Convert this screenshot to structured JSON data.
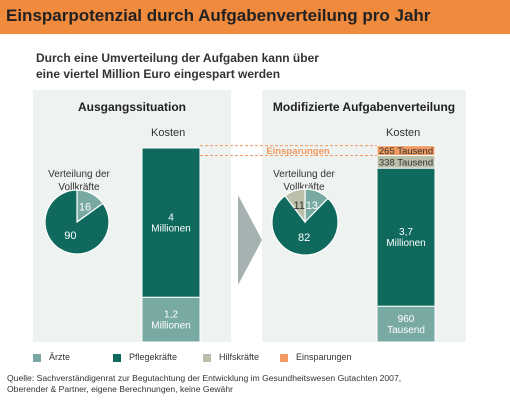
{
  "header": {
    "title": "Einsparpotenzial durch Aufgabenverteilung pro Jahr"
  },
  "subtitle": {
    "line1": "Durch eine Umverteilung der Aufgaben kann über",
    "line2": "eine viertel Million Euro eingespart werden"
  },
  "colors": {
    "header": "#f08a3c",
    "aerzte": "#79a9a3",
    "pflegekraefte": "#0f6a5d",
    "hilfskraefte": "#b9bfa9",
    "einsparungen": "#f19a62",
    "panel": "#eef2f1",
    "arrow": "#a6b2b2"
  },
  "panels": {
    "left": {
      "title": "Ausgangssituation",
      "kosten_label": "Kosten",
      "verteilung_line1": "Verteilung der",
      "verteilung_line2": "Vollkräfte"
    },
    "right": {
      "title": "Modifizierte Aufgabenverteilung",
      "kosten_label": "Kosten",
      "verteilung_line1": "Verteilung der",
      "verteilung_line2": "Vollkräfte"
    }
  },
  "legend": [
    "Ärzte",
    "Pflegekräfte",
    "Hilfskräfte",
    "Einsparungen"
  ],
  "source": {
    "line1": "Quelle: Sachverständigenrat zur Begutachtung der Entwicklung im Gesundheitswesen Gutachten 2007,",
    "line2": "Oberender & Partner, eigene Berechnungen, keine Gewähr"
  },
  "chart_data": [
    {
      "type": "pie",
      "panel": "Ausgangssituation",
      "slices": [
        {
          "category": "Ärzte",
          "value": 16,
          "label": "16"
        },
        {
          "category": "Pflegekräfte",
          "value": 90,
          "label": "90"
        }
      ]
    },
    {
      "type": "bar",
      "panel": "Ausgangssituation",
      "stacked": true,
      "segments": [
        {
          "category": "Ärzte",
          "value": 1.2,
          "label_lines": [
            "1,2",
            "Millionen"
          ]
        },
        {
          "category": "Pflegekräfte",
          "value": 4.0,
          "label_lines": [
            "4",
            "Millionen"
          ]
        }
      ]
    },
    {
      "type": "pie",
      "panel": "Modifizierte Aufgabenverteilung",
      "slices": [
        {
          "category": "Ärzte",
          "value": 13,
          "label": "13"
        },
        {
          "category": "Pflegekräfte",
          "value": 82,
          "label": "82"
        },
        {
          "category": "Hilfskräfte",
          "value": 11,
          "label": "11"
        }
      ]
    },
    {
      "type": "bar",
      "panel": "Modifizierte Aufgabenverteilung",
      "stacked": true,
      "segments": [
        {
          "category": "Ärzte",
          "value": 0.96,
          "label_lines": [
            "960",
            "Tausend"
          ]
        },
        {
          "category": "Pflegekräfte",
          "value": 3.7,
          "label_lines": [
            "3,7",
            "Millionen"
          ]
        },
        {
          "category": "Hilfskräfte",
          "value": 0.338,
          "label_lines": [
            "338 Tausend"
          ]
        },
        {
          "category": "Einsparungen",
          "value": 0.265,
          "label_lines": [
            "265 Tausend"
          ]
        }
      ],
      "annotation": "Einsparungen"
    }
  ]
}
